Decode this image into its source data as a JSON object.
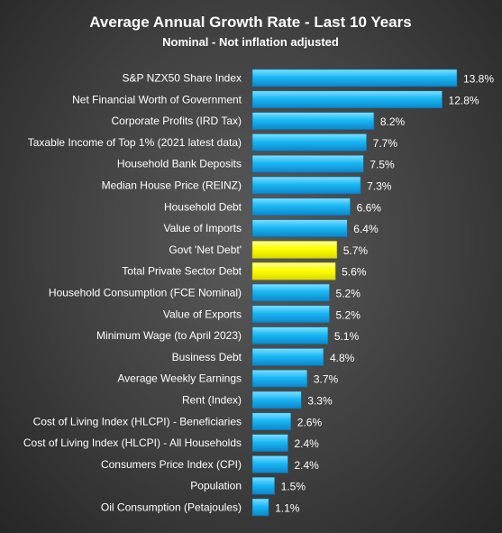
{
  "chart_data": {
    "type": "bar",
    "orientation": "horizontal",
    "title": "Average Annual Growth Rate - Last 10 Years",
    "subtitle": "Nominal - Not inflation adjusted",
    "categories": [
      "S&P NZX50 Share Index",
      "Net Financial Worth of Government",
      "Corporate Profits (IRD Tax)",
      "Taxable Income of Top 1% (2021 latest data)",
      "Household Bank Deposits",
      "Median House Price (REINZ)",
      "Household Debt",
      "Value of Imports",
      "Govt 'Net Debt'",
      "Total Private Sector Debt",
      "Household Consumption (FCE Nominal)",
      "Value of Exports",
      "Minimum Wage (to April 2023)",
      "Business Debt",
      "Average Weekly Earnings",
      "Rent (Index)",
      "Cost of Living Index (HLCPI) - Beneficiaries",
      "Cost of Living Index (HLCPI) - All Households",
      "Consumers Price Index (CPI)",
      "Population",
      "Oil Consumption (Petajoules)"
    ],
    "values": [
      13.8,
      12.8,
      8.2,
      7.7,
      7.5,
      7.3,
      6.6,
      6.4,
      5.7,
      5.6,
      5.2,
      5.2,
      5.1,
      4.8,
      3.7,
      3.3,
      2.6,
      2.4,
      2.4,
      1.5,
      1.1
    ],
    "value_labels": [
      "13.8%",
      "12.8%",
      "8.2%",
      "7.7%",
      "7.5%",
      "7.3%",
      "6.6%",
      "6.4%",
      "5.7%",
      "5.6%",
      "5.2%",
      "5.2%",
      "5.1%",
      "4.8%",
      "3.7%",
      "3.3%",
      "2.6%",
      "2.4%",
      "2.4%",
      "1.5%",
      "1.1%"
    ],
    "highlighted": [
      "Govt 'Net Debt'",
      "Total Private Sector Debt"
    ],
    "colors": {
      "bar": "#1ab8f5",
      "bar_top": "#5fd6ff",
      "highlight": "#ffff00",
      "highlight_top": "#ffff66",
      "text": "#ffffff"
    },
    "xlim": [
      0,
      14
    ],
    "grid": false,
    "legend": "none"
  }
}
